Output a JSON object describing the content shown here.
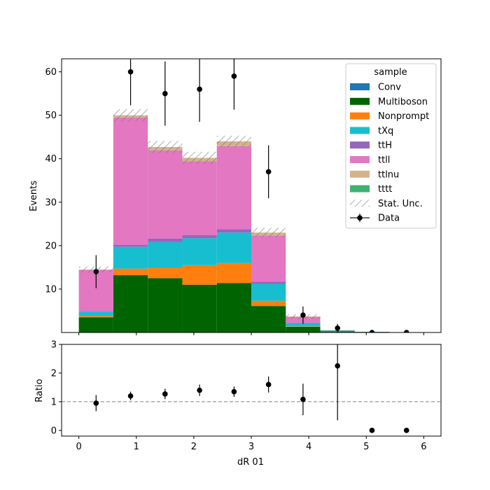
{
  "chart_data": {
    "type": "bar",
    "subtype": "stacked-histogram-with-ratio",
    "xlabel": "dR 01",
    "ylabel": "Events",
    "ratio_ylabel": "Ratio",
    "xlim": [
      -0.3,
      6.3
    ],
    "ylim": [
      0,
      63
    ],
    "ratio_ylim": [
      -0.2,
      3.0
    ],
    "x_ticks": [
      "0",
      "1",
      "2",
      "3",
      "4",
      "5",
      "6"
    ],
    "y_ticks": [
      "10",
      "20",
      "30",
      "40",
      "50",
      "60"
    ],
    "ratio_y_ticks": [
      "0",
      "1",
      "2",
      "3"
    ],
    "ratio_reference_line": 1,
    "bin_edges": [
      0.0,
      0.6,
      1.2,
      1.8,
      2.4,
      3.0,
      3.6,
      4.2,
      4.8,
      5.4,
      6.0
    ],
    "legend_title": "sample",
    "legend_placement": "top-right",
    "series": [
      {
        "name": "Conv",
        "color": "#1f77b4",
        "values": [
          0,
          0,
          0,
          0,
          0,
          0,
          0,
          0.3,
          0.1,
          0
        ]
      },
      {
        "name": "Multiboson",
        "color": "#006400",
        "values": [
          3.5,
          13.2,
          12.5,
          11.0,
          11.4,
          6.1,
          1.3,
          0.1,
          0.05,
          0
        ]
      },
      {
        "name": "Nonprompt",
        "color": "#ff7f0e",
        "values": [
          0.3,
          1.5,
          2.4,
          4.5,
          4.6,
          1.2,
          0.1,
          0,
          0,
          0
        ]
      },
      {
        "name": "tXq",
        "color": "#17becf",
        "values": [
          1.0,
          5.0,
          5.9,
          6.2,
          7.0,
          3.9,
          0.8,
          0.05,
          0,
          0
        ]
      },
      {
        "name": "ttH",
        "color": "#9467bd",
        "values": [
          0.1,
          0.5,
          0.8,
          0.7,
          0.8,
          0.5,
          0.1,
          0,
          0,
          0
        ]
      },
      {
        "name": "ttll",
        "color": "#e377c2",
        "values": [
          9.5,
          29.3,
          20.3,
          17.0,
          19.1,
          10.6,
          1.3,
          0,
          0,
          0
        ]
      },
      {
        "name": "ttlnu",
        "color": "#d2b48c",
        "values": [
          0.1,
          0.5,
          0.8,
          0.8,
          1.1,
          0.7,
          0.1,
          0,
          0,
          0
        ]
      },
      {
        "name": "tttt",
        "color": "#3cb371",
        "values": [
          0,
          0,
          0,
          0,
          0,
          0,
          0,
          0,
          0,
          0
        ]
      }
    ],
    "stat_unc": {
      "name": "Stat. Unc.",
      "values": [
        0.7,
        1.4,
        1.4,
        1.4,
        1.3,
        1.1,
        0.5,
        0.1,
        0.05,
        0
      ]
    },
    "data": {
      "name": "Data",
      "x": [
        0.3,
        0.9,
        1.5,
        2.1,
        2.7,
        3.3,
        3.9,
        4.5,
        5.1,
        5.7
      ],
      "y": [
        14,
        60,
        55,
        56,
        59,
        37,
        4,
        1,
        0,
        0
      ],
      "yerr": [
        3.8,
        7.7,
        7.4,
        7.5,
        7.7,
        6.1,
        2.0,
        1.0,
        0,
        0
      ]
    },
    "ratio": {
      "x": [
        0.3,
        0.9,
        1.5,
        2.1,
        2.7,
        3.3,
        3.9,
        4.5,
        5.1,
        5.7
      ],
      "y": [
        0.95,
        1.2,
        1.27,
        1.4,
        1.35,
        1.6,
        1.08,
        2.25,
        0,
        0
      ],
      "yerr": [
        0.28,
        0.15,
        0.18,
        0.2,
        0.18,
        0.28,
        0.55,
        1.9,
        0,
        0
      ]
    }
  }
}
